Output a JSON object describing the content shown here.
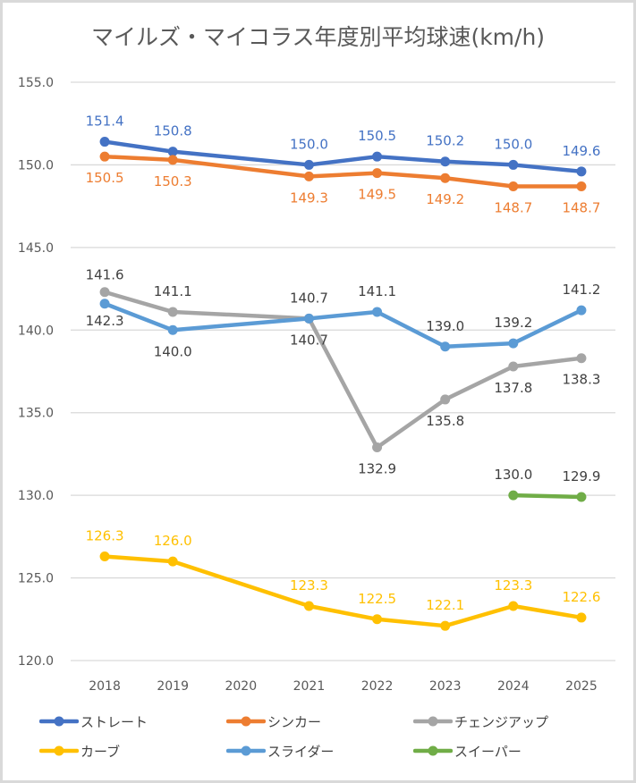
{
  "chart_data": {
    "type": "line",
    "title": "マイルズ・マイコラス年度別平均球速(km/h)",
    "xlabel": "",
    "ylabel": "",
    "ylim": [
      120.0,
      155.0
    ],
    "y_ticks": [
      "120.0",
      "125.0",
      "130.0",
      "135.0",
      "140.0",
      "145.0",
      "150.0",
      "155.0"
    ],
    "y_tick_values": [
      120,
      125,
      130,
      135,
      140,
      145,
      150,
      155
    ],
    "categories": [
      "2018",
      "2019",
      "2020",
      "2021",
      "2022",
      "2023",
      "2024",
      "2025"
    ],
    "grid": "horizontal",
    "legend_position": "bottom",
    "series": [
      {
        "name": "ストレート",
        "color": "#4472c4",
        "label_color": "#4472c4",
        "values": [
          151.4,
          150.8,
          null,
          150.0,
          150.5,
          150.2,
          150.0,
          149.6
        ],
        "labels": [
          "151.4",
          "150.8",
          null,
          "150.0",
          "150.5",
          "150.2",
          "150.0",
          "149.6"
        ],
        "label_side": [
          "above",
          "above",
          null,
          "above",
          "above",
          "above",
          "above",
          "above"
        ]
      },
      {
        "name": "シンカー",
        "color": "#ed7d31",
        "label_color": "#ed7d31",
        "values": [
          150.5,
          150.3,
          null,
          149.3,
          149.5,
          149.2,
          148.7,
          148.7
        ],
        "labels": [
          "150.5",
          "150.3",
          null,
          "149.3",
          "149.5",
          "149.2",
          "148.7",
          "148.7"
        ],
        "label_side": [
          "below",
          "below",
          null,
          "below",
          "below",
          "below",
          "below",
          "below"
        ]
      },
      {
        "name": "チェンジアップ",
        "color": "#a5a5a5",
        "label_color": "#404040",
        "values": [
          142.3,
          141.1,
          null,
          140.7,
          132.9,
          135.8,
          137.8,
          138.3
        ],
        "labels": [
          "142.3",
          "141.1",
          null,
          "140.7",
          "132.9",
          "135.8",
          "137.8",
          "138.3"
        ],
        "label_side": [
          "below-far",
          "above",
          null,
          "above",
          "below",
          "below",
          "below",
          "below"
        ]
      },
      {
        "name": "カーブ",
        "color": "#ffc000",
        "label_color": "#ffc000",
        "values": [
          126.3,
          126.0,
          null,
          123.3,
          122.5,
          122.1,
          123.3,
          122.6
        ],
        "labels": [
          "126.3",
          "126.0",
          null,
          "123.3",
          "122.5",
          "122.1",
          "123.3",
          "122.6"
        ],
        "label_side": [
          "above",
          "above",
          null,
          "above",
          "above",
          "above",
          "above",
          "above"
        ]
      },
      {
        "name": "スライダー",
        "color": "#5b9bd5",
        "label_color": "#404040",
        "values": [
          141.6,
          140.0,
          null,
          140.7,
          141.1,
          139.0,
          139.2,
          141.2
        ],
        "labels": [
          "141.6",
          "140.0",
          null,
          "140.7",
          "141.1",
          "139.0",
          "139.2",
          "141.2"
        ],
        "label_side": [
          "above-far",
          "below",
          null,
          "below",
          "above",
          "above",
          "above",
          "above"
        ]
      },
      {
        "name": "スイーパー",
        "color": "#70ad47",
        "label_color": "#404040",
        "values": [
          null,
          null,
          null,
          null,
          null,
          null,
          130.0,
          129.9
        ],
        "labels": [
          null,
          null,
          null,
          null,
          null,
          null,
          "130.0",
          "129.9"
        ],
        "label_side": [
          null,
          null,
          null,
          null,
          null,
          null,
          "above",
          "above"
        ]
      }
    ]
  },
  "legend": {
    "items": [
      "ストレート",
      "シンカー",
      "チェンジアップ",
      "カーブ",
      "スライダー",
      "スイーパー"
    ]
  }
}
